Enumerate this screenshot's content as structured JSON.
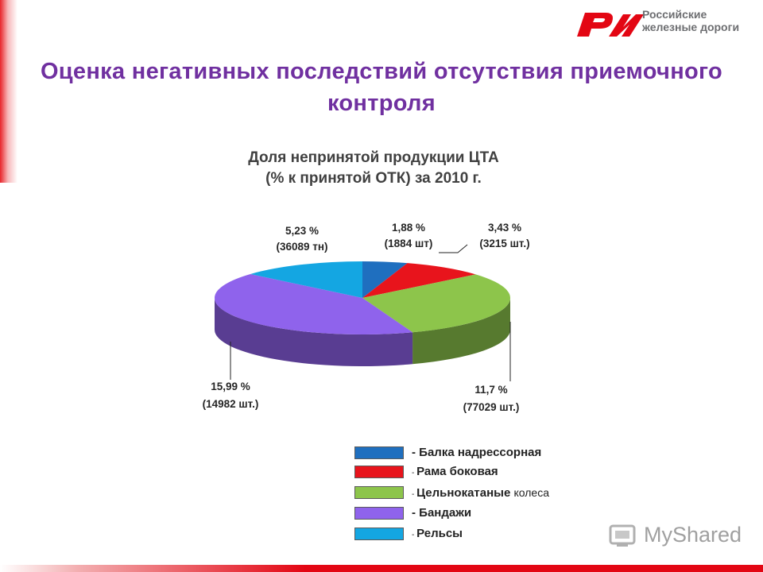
{
  "header": {
    "logo_text_line1": "Российские",
    "logo_text_line2": "железные дороги",
    "title": "Оценка негативных последствий отсутствия приемочного контроля"
  },
  "colors": {
    "accent": "#e30613",
    "title": "#7030a0",
    "balka": "#1f6fbf",
    "rama": "#e8141c",
    "kolesa": "#8dc54b",
    "bandazhi": "#8f63ec",
    "relsy": "#14a6e2"
  },
  "chart_data": {
    "type": "pie",
    "title": "Доля непринятой продукции ЦТА (% к принятой ОТК)  за 2010 г.",
    "title_line1": "Доля непринятой продукции ЦТА",
    "title_line2": "(% к принятой ОТК)  за 2010 г.",
    "three_d": true,
    "slices": [
      {
        "legend": "- Балка надрессорная",
        "value": 1.88,
        "label_pct": "1,88 %",
        "label_qty": "(1884 шт)",
        "color": "#1f6fbf"
      },
      {
        "legend": "- Рама боковая",
        "value": 3.43,
        "label_pct": "3,43 %",
        "label_qty": "(3215 шт.)",
        "color": "#e8141c"
      },
      {
        "legend": "- Цельнокатаные колеса",
        "value": 11.7,
        "label_pct": "11,7 %",
        "label_qty": "(77029 шт.)",
        "color": "#8dc54b"
      },
      {
        "legend": "- Бандажи",
        "value": 15.99,
        "label_pct": "15,99 %",
        "label_qty": "(14982 шт.)",
        "color": "#8f63ec"
      },
      {
        "legend": "- Рельсы",
        "value": 5.23,
        "label_pct": "5,23 %",
        "label_qty": "(36089 тн)",
        "color": "#14a6e2"
      }
    ],
    "legend_placement": "bottom"
  },
  "legend": {
    "items": [
      {
        "prefix": "- ",
        "text": "Балка надрессорная"
      },
      {
        "prefix": "- ",
        "text": "Рама боковая"
      },
      {
        "prefix": "- ",
        "text": "Цельнокатаные ",
        "tail": "колеса"
      },
      {
        "prefix": "- ",
        "text": "Бандажи"
      },
      {
        "prefix": "- ",
        "text": "Рельсы"
      }
    ]
  },
  "watermark": {
    "text": "MyShared"
  }
}
